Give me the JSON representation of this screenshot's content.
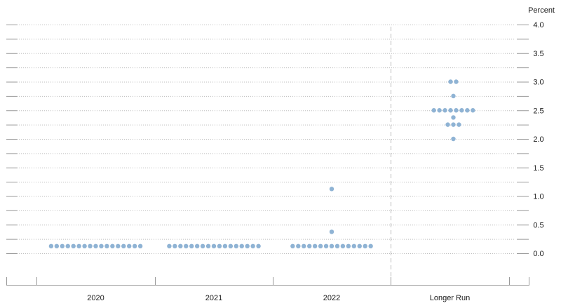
{
  "chart_data": {
    "type": "scatter",
    "ylabel": "Percent",
    "ylim": [
      0,
      4.0
    ],
    "y_ticks": [
      "4.0",
      "3.5",
      "3.0",
      "2.5",
      "2.0",
      "1.5",
      "1.0",
      "0.5",
      "0.0"
    ],
    "y_tick_values": [
      4.0,
      3.5,
      3.0,
      2.5,
      2.0,
      1.5,
      1.0,
      0.5,
      0.0
    ],
    "categories": [
      "2020",
      "2021",
      "2022",
      "Longer Run"
    ],
    "gridlines": "horizontal dotted at every 0.25",
    "separator": "dashed vertical line before Longer Run",
    "colors": {
      "dot": "#8fb3d4",
      "grid": "#bdbdbd",
      "axis": "#999999"
    },
    "series": [
      {
        "category": "2020",
        "points": [
          {
            "y": 0.125,
            "count": 17
          }
        ]
      },
      {
        "category": "2021",
        "points": [
          {
            "y": 0.125,
            "count": 17
          }
        ]
      },
      {
        "category": "2022",
        "points": [
          {
            "y": 0.125,
            "count": 15
          },
          {
            "y": 0.375,
            "count": 1
          },
          {
            "y": 1.125,
            "count": 1
          }
        ]
      },
      {
        "category": "Longer Run",
        "points": [
          {
            "y": 2.0,
            "count": 1
          },
          {
            "y": 2.25,
            "count": 3
          },
          {
            "y": 2.375,
            "count": 1
          },
          {
            "y": 2.5,
            "count": 8
          },
          {
            "y": 2.75,
            "count": 1
          },
          {
            "y": 3.0,
            "count": 2
          }
        ]
      }
    ]
  }
}
